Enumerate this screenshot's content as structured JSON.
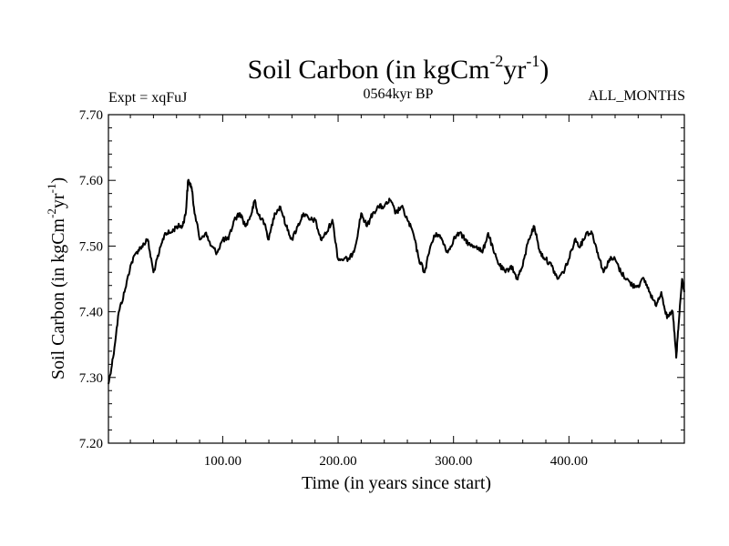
{
  "chart_data": {
    "type": "line",
    "title": {
      "main": "Soil Carbon (in kgCm",
      "sup1": "-2",
      "mid": "yr",
      "sup2": "-1",
      "end": ")"
    },
    "ylabel": {
      "main": "Soil Carbon (in kgCm",
      "sup1": "-2",
      "mid": "yr",
      "sup2": "-1",
      "end": ")"
    },
    "left_note": "Expt = xqFuJ",
    "center_note": "0564kyr BP",
    "right_note": "ALL_MONTHS",
    "xlabel": "Time (in years since start)",
    "xlim": [
      1,
      500
    ],
    "ylim": [
      7.2,
      7.7
    ],
    "xticks": [
      100,
      200,
      300,
      400
    ],
    "xtick_labels": [
      "100.00",
      "200.00",
      "300.00",
      "400.00"
    ],
    "yticks": [
      7.2,
      7.3,
      7.4,
      7.5,
      7.6,
      7.7
    ],
    "ytick_labels": [
      "7.20",
      "7.30",
      "7.40",
      "7.50",
      "7.60",
      "7.70"
    ],
    "series": [
      {
        "name": "Soil Carbon",
        "x": [
          1,
          5,
          10,
          15,
          20,
          25,
          30,
          35,
          40,
          45,
          50,
          55,
          60,
          65,
          68,
          70,
          73,
          75,
          80,
          85,
          90,
          95,
          100,
          105,
          110,
          115,
          120,
          125,
          128,
          130,
          135,
          140,
          145,
          150,
          155,
          160,
          165,
          170,
          175,
          180,
          185,
          190,
          195,
          200,
          205,
          210,
          215,
          220,
          225,
          230,
          235,
          240,
          245,
          250,
          255,
          260,
          265,
          270,
          275,
          280,
          285,
          290,
          295,
          300,
          305,
          310,
          315,
          320,
          325,
          330,
          335,
          340,
          345,
          350,
          355,
          360,
          365,
          370,
          375,
          380,
          385,
          390,
          395,
          400,
          405,
          410,
          415,
          420,
          425,
          430,
          435,
          440,
          445,
          450,
          455,
          460,
          465,
          470,
          475,
          480,
          485,
          490,
          493,
          495,
          498,
          500
        ],
        "y": [
          7.29,
          7.33,
          7.4,
          7.43,
          7.47,
          7.49,
          7.5,
          7.51,
          7.46,
          7.49,
          7.52,
          7.52,
          7.53,
          7.53,
          7.55,
          7.6,
          7.59,
          7.56,
          7.51,
          7.52,
          7.5,
          7.49,
          7.51,
          7.51,
          7.54,
          7.55,
          7.53,
          7.55,
          7.57,
          7.55,
          7.54,
          7.51,
          7.55,
          7.56,
          7.53,
          7.51,
          7.53,
          7.55,
          7.54,
          7.54,
          7.51,
          7.52,
          7.54,
          7.48,
          7.48,
          7.48,
          7.5,
          7.55,
          7.53,
          7.55,
          7.56,
          7.56,
          7.57,
          7.55,
          7.56,
          7.54,
          7.52,
          7.48,
          7.46,
          7.5,
          7.52,
          7.51,
          7.49,
          7.51,
          7.52,
          7.51,
          7.5,
          7.5,
          7.49,
          7.52,
          7.49,
          7.47,
          7.46,
          7.47,
          7.45,
          7.47,
          7.51,
          7.53,
          7.49,
          7.48,
          7.47,
          7.45,
          7.46,
          7.48,
          7.51,
          7.5,
          7.52,
          7.52,
          7.49,
          7.46,
          7.48,
          7.48,
          7.46,
          7.45,
          7.44,
          7.44,
          7.45,
          7.43,
          7.41,
          7.43,
          7.39,
          7.4,
          7.33,
          7.38,
          7.45,
          7.43
        ]
      }
    ]
  }
}
